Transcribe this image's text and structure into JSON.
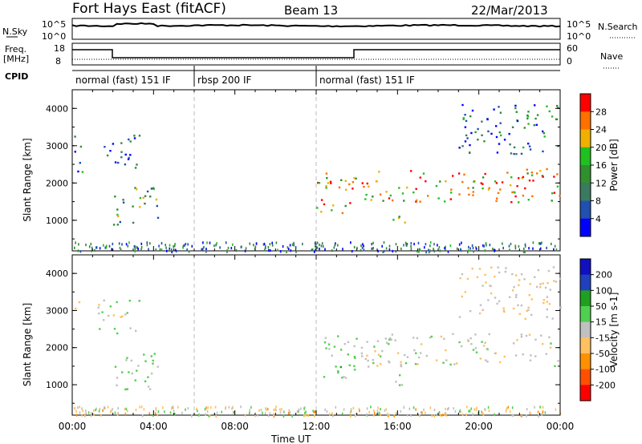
{
  "header": {
    "station": "Fort Hays East (fitACF)",
    "beam": "Beam 13",
    "date": "22/Mar/2013"
  },
  "strip_labels": {
    "nsky": "N.Sky",
    "nsearch": "N.Search",
    "freq": "Freq.",
    "freq_unit": "[MHz]",
    "nave": "Nave",
    "cpid": "CPID"
  },
  "noise_ticks": {
    "top": "10^5",
    "bottom": "10^0"
  },
  "freq_ticks": [
    "18",
    "8"
  ],
  "nave_ticks": [
    "60",
    "0"
  ],
  "cpid_modes": [
    {
      "label": "normal (fast) 151 IF",
      "start_h": 0,
      "end_h": 6
    },
    {
      "label": "rbsp 200 IF",
      "start_h": 6,
      "end_h": 12
    },
    {
      "label": "normal (fast) 151 IF",
      "start_h": 12,
      "end_h": 24
    }
  ],
  "colors": {
    "power_scale": [
      "#0000ff",
      "#2050b0",
      "#3a7a60",
      "#309030",
      "#20c020",
      "#f0b000",
      "#ff7000",
      "#ff0000"
    ],
    "velocity_scale": [
      "#1010c0",
      "#2040c0",
      "#20a020",
      "#50d050",
      "#c0c0c0",
      "#ffc060",
      "#ff9000",
      "#ff5000",
      "#ff0000"
    ]
  },
  "chart_data": [
    {
      "type": "heatmap",
      "name": "power",
      "ylabel": "Slant Range [km]",
      "xlabel": "Time UT",
      "xlim": [
        0,
        24
      ],
      "ylim": [
        180,
        4500
      ],
      "x_ticks": [
        "00:00",
        "04:00",
        "08:00",
        "12:00",
        "16:00",
        "20:00",
        "00:00"
      ],
      "y_ticks": [
        "1000",
        "2000",
        "3000",
        "4000"
      ],
      "colorbar": {
        "label": "Power [dB]",
        "ticks": [
          "4",
          "8",
          "12",
          "16",
          "20",
          "24",
          "28"
        ],
        "range": [
          0,
          30
        ]
      },
      "regions": [
        {
          "t0": 0.0,
          "t1": 0.5,
          "r0": 2300,
          "r1": 3300,
          "level": 10
        },
        {
          "t0": 1.2,
          "t1": 3.3,
          "r0": 2400,
          "r1": 3300,
          "level": 6
        },
        {
          "t0": 2.0,
          "t1": 4.3,
          "r0": 900,
          "r1": 1900,
          "level": 13
        },
        {
          "t0": 12.0,
          "t1": 14.0,
          "r0": 1200,
          "r1": 2400,
          "level": 20
        },
        {
          "t0": 14.0,
          "t1": 24.0,
          "r0": 1500,
          "r1": 2400,
          "level": 22
        },
        {
          "t0": 15.6,
          "t1": 16.6,
          "r0": 900,
          "r1": 1300,
          "level": 12
        },
        {
          "t0": 19.0,
          "t1": 24.0,
          "r0": 2800,
          "r1": 4200,
          "level": 8
        }
      ]
    },
    {
      "type": "heatmap",
      "name": "velocity",
      "ylabel": "Slant Range [km]",
      "xlabel": "Time UT",
      "xlim": [
        0,
        24
      ],
      "ylim": [
        180,
        4500
      ],
      "x_ticks": [
        "00:00",
        "04:00",
        "08:00",
        "12:00",
        "16:00",
        "20:00",
        "00:00"
      ],
      "y_ticks": [
        "1000",
        "2000",
        "3000",
        "4000"
      ],
      "colorbar": {
        "label": "Velocity [m s-1]",
        "ticks": [
          "200",
          "100",
          "50",
          "15",
          "-15",
          "-50",
          "-100",
          "-200"
        ],
        "range": [
          -250,
          250
        ]
      },
      "regions": [
        {
          "t0": 0.0,
          "t1": 0.5,
          "r0": 2900,
          "r1": 3300,
          "value": 0
        },
        {
          "t0": 1.2,
          "t1": 3.3,
          "r0": 2400,
          "r1": 3300,
          "value": 0
        },
        {
          "t0": 2.0,
          "t1": 4.3,
          "r0": 900,
          "r1": 1900,
          "value": 40
        },
        {
          "t0": 12.0,
          "t1": 14.0,
          "r0": 1200,
          "r1": 2400,
          "value": 40
        },
        {
          "t0": 14.0,
          "t1": 24.0,
          "r0": 1500,
          "r1": 2400,
          "value": 0
        },
        {
          "t0": 15.6,
          "t1": 16.6,
          "r0": 900,
          "r1": 1300,
          "value": 0
        },
        {
          "t0": 19.0,
          "t1": 24.0,
          "r0": 2800,
          "r1": 4200,
          "value": -30
        }
      ]
    }
  ]
}
